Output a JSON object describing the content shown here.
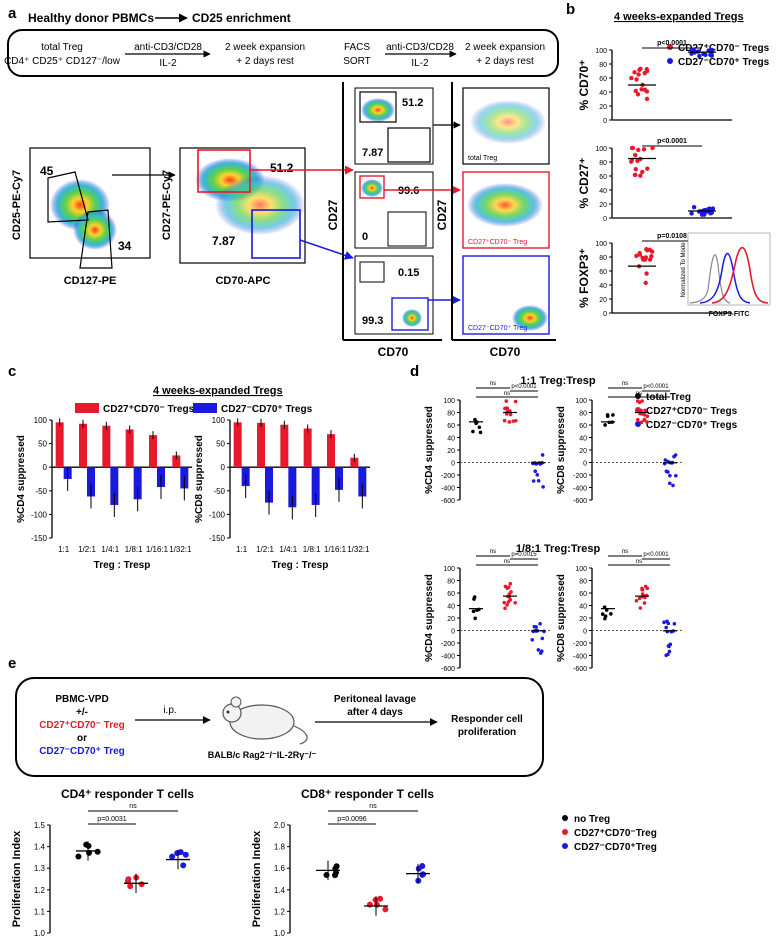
{
  "panels": {
    "a": {
      "letter": "a",
      "header_left": "Healthy donor PBMCs",
      "header_right": "CD25 enrichment",
      "steps": [
        {
          "line1": "total Treg",
          "line2": "CD4⁺ CD25⁺ CD127⁻/low"
        },
        {
          "line1": "anti-CD3/CD28",
          "line2": "IL-2"
        },
        {
          "line1": "2 week expansion",
          "line2": "+ 2 days rest"
        },
        {
          "line1": "FACS",
          "line2": "SORT"
        },
        {
          "line1": "anti-CD3/CD28",
          "line2": "IL-2"
        },
        {
          "line1": "2 week expansion",
          "line2": "+ 2 days rest"
        }
      ],
      "plot1": {
        "ylabel": "CD25-PE-Cy7",
        "xlabel": "CD127-PE",
        "gate1": "45",
        "gate2": "34"
      },
      "plot2": {
        "ylabel": "CD27-PE-Cy7",
        "xlabel": "CD70-APC",
        "gate1": "51.2",
        "gate2": "7.87"
      },
      "small_plots": [
        {
          "value1": "51.2",
          "value2": "7.87"
        },
        {
          "value1": "99.6",
          "value2": "0"
        },
        {
          "value1": "0.15",
          "value2": "99.3"
        }
      ],
      "mid_axis": {
        "ylabel": "CD27",
        "xlabel": "CD70"
      },
      "right_axis": {
        "ylabel": "CD27",
        "xlabel": "CD70"
      },
      "right_labels": [
        "total Treg",
        "CD27⁺CD70⁻ Treg",
        "CD27⁻CD70⁺ Treg"
      ]
    },
    "b": {
      "letter": "b",
      "title": "4 weeks-expanded Tregs",
      "legend": [
        "CD27⁺CD70⁻ Tregs",
        "CD27⁻CD70⁺ Tregs"
      ],
      "plots": [
        {
          "ylabel": "% CD70⁺",
          "pvalue": "p<0.0001",
          "ticks": [
            "100",
            "80",
            "60",
            "40",
            "20",
            "0"
          ]
        },
        {
          "ylabel": "% CD27⁺",
          "pvalue": "p<0.0001",
          "ticks": [
            "100",
            "80",
            "60",
            "40",
            "20",
            "0"
          ]
        },
        {
          "ylabel": "% FOXP3⁺",
          "pvalue": "p=0.0108",
          "ticks": [
            "100",
            "80",
            "60",
            "40",
            "20",
            "0"
          ]
        }
      ],
      "histogram": {
        "ylabel": "Normalized To Mode",
        "xlabel": "FOXP3-FITC"
      }
    },
    "c": {
      "letter": "c",
      "title": "4 weeks-expanded Tregs",
      "legend": [
        "CD27⁺CD70⁻ Tregs",
        "CD27⁻CD70⁺ Tregs"
      ],
      "xlabel": "Treg : Tresp"
    },
    "d": {
      "letter": "d",
      "legend": [
        "total Treg",
        "CD27⁺CD70⁻ Tregs",
        "CD27⁻CD70⁺ Tregs"
      ],
      "groups": [
        {
          "title": "1:1 Treg:Tresp",
          "plots": [
            {
              "ylabel": "%CD4 suppressed",
              "p_top": "p<0.0001",
              "p_left": "ns",
              "p_mid": "ns"
            },
            {
              "ylabel": "%CD8 suppressed",
              "p_top": "p<0.0001",
              "p_left": "ns",
              "p_mid": "ns"
            }
          ]
        },
        {
          "title": "1/8:1 Treg:Tresp",
          "plots": [
            {
              "ylabel": "%CD4 suppressed",
              "p_top": "p=0.0015",
              "p_left": "ns",
              "p_mid": "ns"
            },
            {
              "ylabel": "%CD8 suppressed",
              "p_top": "p<0.0001",
              "p_left": "ns",
              "p_mid": "ns"
            }
          ]
        }
      ],
      "ticks": [
        "100",
        "80",
        "60",
        "40",
        "20",
        "0",
        "-200",
        "-400",
        "-600"
      ]
    },
    "e": {
      "letter": "e",
      "box": {
        "cells_line1": "PBMC-VPD",
        "cells_line2": "+/-",
        "cells_line3": "CD27⁺CD70⁻ Treg",
        "cells_line4": "or",
        "cells_line5": "CD27⁻CD70⁺ Treg",
        "route": "i.p.",
        "mouse": "BALB/c Rag2⁻/⁻IL-2Rγ⁻/⁻",
        "lavage_line1": "Peritoneal lavage",
        "lavage_line2": "after 4 days",
        "readout_line1": "Responder cell",
        "readout_line2": "proliferation"
      },
      "plots": [
        {
          "title": "CD4⁺ responder T cells",
          "ylabel": "Proliferation Index",
          "p_low": "p=0.0031",
          "p_high": "ns",
          "ticks": [
            "1.5",
            "1.4",
            "1.3",
            "1.2",
            "1.1",
            "1.0"
          ]
        },
        {
          "title": "CD8⁺ responder T cells",
          "ylabel": "Proliferation Index",
          "p_low": "p=0.0096",
          "p_high": "ns",
          "ticks": [
            "2.0",
            "1.8",
            "1.6",
            "1.4",
            "1.2",
            "1.0"
          ]
        }
      ],
      "legend": [
        "no Treg",
        "CD27⁺CD70⁻Treg",
        "CD27⁻CD70⁺Treg"
      ]
    }
  },
  "colors": {
    "red": "#e8192c",
    "blue": "#1a1adf",
    "black": "#000000"
  },
  "chart_data": [
    {
      "type": "bar",
      "title": "4 weeks-expanded Tregs",
      "ylabel": "%CD4 suppressed",
      "xlabel": "Treg : Tresp",
      "categories": [
        "1:1",
        "1/2:1",
        "1/4:1",
        "1/8:1",
        "1/16:1",
        "1/32:1"
      ],
      "ylim": [
        -150,
        100
      ],
      "yticks": [
        "100",
        "50",
        "0",
        "-50",
        "-100",
        "-150"
      ],
      "series": [
        {
          "name": "CD27⁺CD70⁻ Tregs",
          "values": [
            95,
            92,
            88,
            80,
            68,
            25
          ]
        },
        {
          "name": "CD27⁻CD70⁺ Tregs",
          "values": [
            -25,
            -62,
            -80,
            -68,
            -42,
            -45
          ]
        }
      ]
    },
    {
      "type": "bar",
      "title": "4 weeks-expanded Tregs",
      "ylabel": "%CD8 suppressed",
      "xlabel": "Treg : Tresp",
      "categories": [
        "1:1",
        "1/2:1",
        "1/4:1",
        "1/8:1",
        "1/16:1",
        "1/32:1"
      ],
      "ylim": [
        -150,
        100
      ],
      "yticks": [
        "100",
        "50",
        "0",
        "-50",
        "-100",
        "-150"
      ],
      "series": [
        {
          "name": "CD27⁺CD70⁻ Tregs",
          "values": [
            95,
            94,
            90,
            82,
            70,
            20
          ]
        },
        {
          "name": "CD27⁻CD70⁺ Tregs",
          "values": [
            -40,
            -75,
            -85,
            -80,
            -48,
            -62
          ]
        }
      ]
    }
  ]
}
